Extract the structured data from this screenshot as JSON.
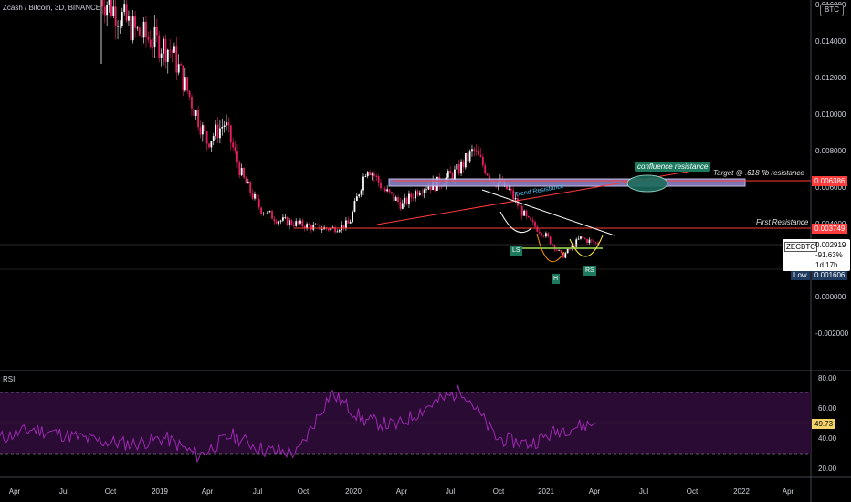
{
  "header": {
    "title": "Zcash / Bitcoin, 3D, BINANCE",
    "currency_badge": "BTC"
  },
  "price_axis": {
    "ticks": [
      "0.016000",
      "0.014000",
      "0.012000",
      "0.010000",
      "0.008000",
      "0.006000",
      "0.004000",
      "0.002000",
      "0.000000",
      "-0.002000"
    ],
    "target_tag": "0.006386",
    "resistance_tag": "0.003749",
    "low_label": "Low",
    "low_value": "0.001606"
  },
  "ticker_box": {
    "symbol": "ZECBTC",
    "price": "0.002919",
    "change": "-91.63%",
    "countdown": "1d 17h"
  },
  "annotations": {
    "confluence": "confluence resistance",
    "target": "Target @ .618 fib resistance",
    "trend": "Trend Resistance",
    "first_resistance": "First Resistance",
    "ls": "LS",
    "h": "H",
    "rs": "RS"
  },
  "rsi": {
    "label": "RSI",
    "ticks": [
      "80.00",
      "60.00",
      "40.00",
      "20.00"
    ],
    "current": "49.73"
  },
  "time_axis": [
    "Apr",
    "Jul",
    "Oct",
    "2019",
    "Apr",
    "Jul",
    "Oct",
    "2020",
    "Apr",
    "Jul",
    "Oct",
    "2021",
    "Apr",
    "Jul",
    "Oct",
    "2022",
    "Apr"
  ],
  "colors": {
    "background": "#000000",
    "candle_up": "#ffffff",
    "candle_down": "#e91e63",
    "resistance": "#ff3b3b",
    "zone_fill": "#8c83c7",
    "rsi_line": "#9c27b0",
    "rsi_band": "#2a0b33",
    "neckline": "#8bc34a",
    "confluence": "#1b6b5c",
    "label_bg": "#1d7a5f",
    "low_bg": "#1e3a5f"
  },
  "chart_data": [
    {
      "type": "candlestick",
      "title": "Zcash / Bitcoin, 3D, BINANCE",
      "series": [
        {
          "name": "ZECBTC",
          "x": [
            "2018-09",
            "2018-11",
            "2019-01",
            "2019-02",
            "2019-03",
            "2019-04",
            "2019-05",
            "2019-06",
            "2019-07",
            "2019-08",
            "2019-09",
            "2019-10",
            "2019-11",
            "2019-12",
            "2020-01",
            "2020-02",
            "2020-03",
            "2020-04",
            "2020-05",
            "2020-06",
            "2020-07",
            "2020-08",
            "2020-09",
            "2020-10",
            "2020-11",
            "2020-12",
            "2021-01",
            "2021-02",
            "2021-03"
          ],
          "values": [
            0.0165,
            0.0155,
            0.0145,
            0.014,
            0.0135,
            0.011,
            0.0085,
            0.0095,
            0.0065,
            0.0048,
            0.0042,
            0.004,
            0.0038,
            0.0037,
            0.004,
            0.0072,
            0.0058,
            0.005,
            0.006,
            0.0062,
            0.0068,
            0.008,
            0.0065,
            0.0058,
            0.0042,
            0.0034,
            0.0022,
            0.0032,
            0.0029
          ]
        }
      ],
      "ylim": [
        -0.0035,
        0.0165
      ],
      "horizontal_lines": [
        0.006386,
        0.003749
      ],
      "low": 0.001606
    },
    {
      "type": "line",
      "title": "RSI",
      "series": [
        {
          "name": "RSI",
          "x": [
            "2018-05",
            "2018-07",
            "2018-09",
            "2018-11",
            "2019-01",
            "2019-03",
            "2019-05",
            "2019-07",
            "2019-09",
            "2019-11",
            "2020-01",
            "2020-03",
            "2020-05",
            "2020-07",
            "2020-09",
            "2020-11",
            "2021-01",
            "2021-03",
            "2021-04"
          ],
          "values": [
            40,
            46,
            42,
            38,
            36,
            40,
            28,
            42,
            32,
            30,
            70,
            52,
            48,
            62,
            72,
            40,
            36,
            46,
            49.73
          ]
        }
      ],
      "ylim": [
        15,
        82
      ],
      "levels": [
        70,
        30
      ]
    }
  ]
}
